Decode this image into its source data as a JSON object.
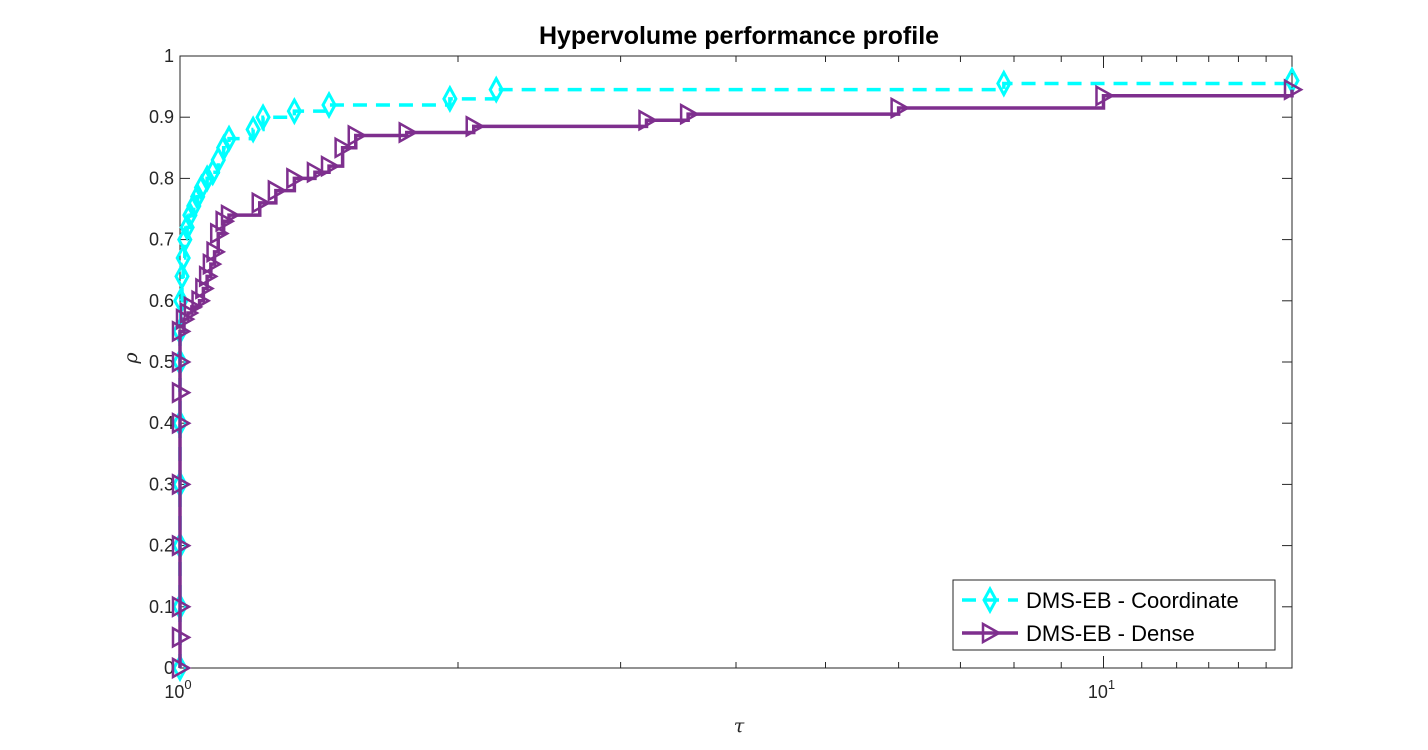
{
  "chart_data": {
    "type": "line",
    "title": "Hypervolume performance profile",
    "xlabel": "τ",
    "ylabel": "ρ",
    "xscale": "log",
    "xlim": [
      1,
      16
    ],
    "ylim": [
      0,
      1
    ],
    "xticks": [
      {
        "value": 1,
        "base": "10",
        "exp": "0"
      },
      {
        "value": 10,
        "base": "10",
        "exp": "1"
      }
    ],
    "yticks": [
      "0",
      "0.1",
      "0.2",
      "0.3",
      "0.4",
      "0.5",
      "0.6",
      "0.7",
      "0.8",
      "0.9",
      "1"
    ],
    "grid": false,
    "legend_position": "bottom-right",
    "series": [
      {
        "name": "DMS-EB - Coordinate",
        "color": "#00FFFF",
        "line_style": "dashed",
        "marker": "diamond",
        "x": [
          1.0,
          1.0,
          1.0,
          1.0,
          1.0,
          1.0,
          1.0,
          1.002,
          1.005,
          1.008,
          1.012,
          1.018,
          1.025,
          1.035,
          1.045,
          1.055,
          1.07,
          1.085,
          1.1,
          1.115,
          1.13,
          1.2,
          1.23,
          1.33,
          1.45,
          1.96,
          2.2,
          7.8,
          16.0
        ],
        "y": [
          0.0,
          0.1,
          0.2,
          0.3,
          0.4,
          0.5,
          0.55,
          0.6,
          0.64,
          0.67,
          0.7,
          0.72,
          0.74,
          0.755,
          0.77,
          0.785,
          0.8,
          0.81,
          0.83,
          0.85,
          0.865,
          0.88,
          0.9,
          0.91,
          0.92,
          0.93,
          0.945,
          0.955,
          0.96
        ]
      },
      {
        "name": "DMS-EB - Dense",
        "color": "#7E2F8E",
        "line_style": "solid",
        "marker": "triangle-right",
        "x": [
          1.0,
          1.0,
          1.0,
          1.0,
          1.0,
          1.0,
          1.0,
          1.0,
          1.0,
          1.01,
          1.02,
          1.03,
          1.05,
          1.06,
          1.07,
          1.08,
          1.09,
          1.1,
          1.115,
          1.13,
          1.22,
          1.27,
          1.33,
          1.4,
          1.45,
          1.5,
          1.55,
          1.76,
          2.08,
          3.2,
          3.55,
          6.0,
          10.0,
          16.0
        ],
        "y": [
          0.0,
          0.05,
          0.1,
          0.2,
          0.3,
          0.4,
          0.45,
          0.5,
          0.55,
          0.57,
          0.58,
          0.59,
          0.6,
          0.62,
          0.64,
          0.66,
          0.68,
          0.71,
          0.73,
          0.74,
          0.76,
          0.78,
          0.8,
          0.81,
          0.82,
          0.85,
          0.87,
          0.875,
          0.885,
          0.895,
          0.905,
          0.915,
          0.935,
          0.945
        ]
      }
    ]
  }
}
